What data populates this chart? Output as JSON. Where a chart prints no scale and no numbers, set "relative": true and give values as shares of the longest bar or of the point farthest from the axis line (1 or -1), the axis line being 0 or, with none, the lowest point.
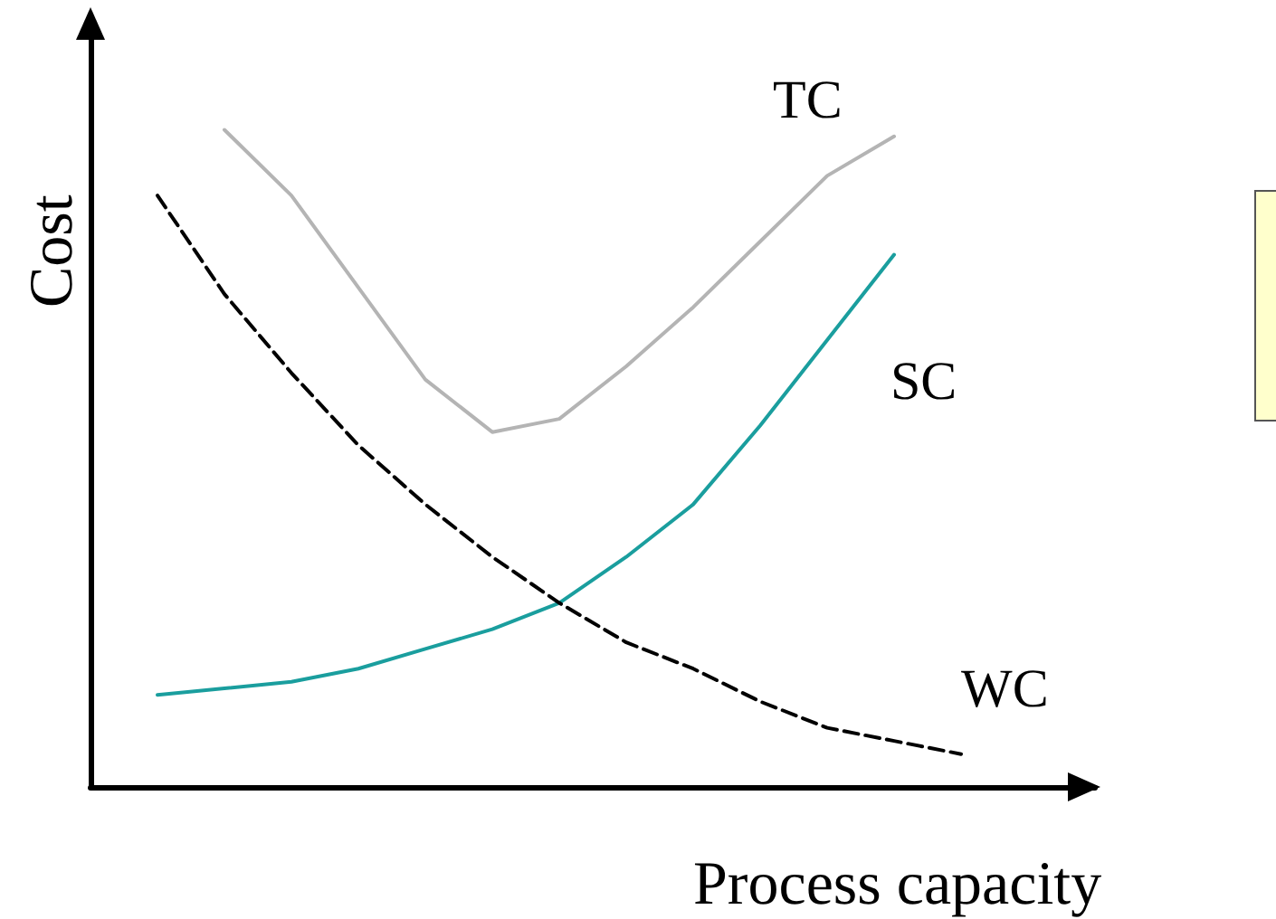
{
  "chart_data": {
    "type": "line",
    "relative": true,
    "xlabel": "Process capacity",
    "ylabel": "Cost",
    "grid": false,
    "legend": false,
    "marker": "none",
    "categories": [
      null,
      null,
      null,
      null,
      null,
      null,
      null,
      null,
      null,
      null,
      null,
      null,
      null,
      null,
      null,
      null
    ],
    "series": [
      {
        "name": "TC",
        "color": "#b4b4b4",
        "line_style": "solid",
        "values": [
          null,
          null,
          1.0,
          0.9,
          0.76,
          0.62,
          0.54,
          0.56,
          0.64,
          0.73,
          0.83,
          0.93,
          0.99,
          null,
          null,
          null
        ]
      },
      {
        "name": "SC",
        "color": "#1a9e9e",
        "line_style": "solid",
        "values": [
          null,
          0.14,
          0.15,
          0.16,
          0.18,
          0.21,
          0.24,
          0.28,
          0.35,
          0.43,
          0.55,
          0.68,
          0.81,
          null,
          null,
          null
        ]
      },
      {
        "name": "WC",
        "color": "#000000",
        "line_style": "dashed",
        "values": [
          null,
          0.9,
          0.75,
          0.63,
          0.52,
          0.43,
          0.35,
          0.28,
          0.22,
          0.18,
          0.13,
          0.09,
          0.07,
          0.05,
          null,
          null
        ]
      }
    ]
  }
}
